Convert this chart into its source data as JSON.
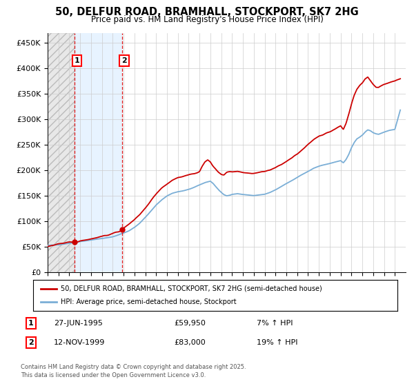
{
  "title": "50, DELFUR ROAD, BRAMHALL, STOCKPORT, SK7 2HG",
  "subtitle": "Price paid vs. HM Land Registry's House Price Index (HPI)",
  "legend_line1": "50, DELFUR ROAD, BRAMHALL, STOCKPORT, SK7 2HG (semi-detached house)",
  "legend_line2": "HPI: Average price, semi-detached house, Stockport",
  "t1_label": "1",
  "t1_date": "27-JUN-1995",
  "t1_price": "£59,950",
  "t1_hpi_txt": "7% ↑ HPI",
  "t1_year": 1995.49,
  "t1_value": 59950,
  "t2_label": "2",
  "t2_date": "12-NOV-1999",
  "t2_price": "£83,000",
  "t2_hpi_txt": "19% ↑ HPI",
  "t2_year": 1999.87,
  "t2_value": 83000,
  "copyright": "Contains HM Land Registry data © Crown copyright and database right 2025.\nThis data is licensed under the Open Government Licence v3.0.",
  "red_color": "#cc0000",
  "blue_color": "#7aaed6",
  "grid_color": "#cccccc",
  "ylim": [
    0,
    470000
  ],
  "ytick_vals": [
    0,
    50000,
    100000,
    150000,
    200000,
    250000,
    300000,
    350000,
    400000,
    450000
  ],
  "ytick_labels": [
    "£0",
    "£50K",
    "£100K",
    "£150K",
    "£200K",
    "£250K",
    "£300K",
    "£350K",
    "£400K",
    "£450K"
  ],
  "xmin": 1993,
  "xmax": 2026,
  "hpi_knots": [
    [
      1993.0,
      47000
    ],
    [
      1993.5,
      48000
    ],
    [
      1994.0,
      49500
    ],
    [
      1994.5,
      51000
    ],
    [
      1995.0,
      52500
    ],
    [
      1995.5,
      54000
    ],
    [
      1996.0,
      56000
    ],
    [
      1996.5,
      57500
    ],
    [
      1997.0,
      59500
    ],
    [
      1997.5,
      61500
    ],
    [
      1998.0,
      63000
    ],
    [
      1998.5,
      65000
    ],
    [
      1999.0,
      67000
    ],
    [
      1999.5,
      70000
    ],
    [
      2000.0,
      74000
    ],
    [
      2000.5,
      79000
    ],
    [
      2001.0,
      86000
    ],
    [
      2001.5,
      95000
    ],
    [
      2002.0,
      106000
    ],
    [
      2002.5,
      118000
    ],
    [
      2003.0,
      130000
    ],
    [
      2003.5,
      140000
    ],
    [
      2004.0,
      148000
    ],
    [
      2004.5,
      153000
    ],
    [
      2005.0,
      156000
    ],
    [
      2005.5,
      158000
    ],
    [
      2006.0,
      161000
    ],
    [
      2006.5,
      165000
    ],
    [
      2007.0,
      170000
    ],
    [
      2007.5,
      175000
    ],
    [
      2008.0,
      178000
    ],
    [
      2008.25,
      174000
    ],
    [
      2008.5,
      168000
    ],
    [
      2008.75,
      162000
    ],
    [
      2009.0,
      157000
    ],
    [
      2009.25,
      153000
    ],
    [
      2009.5,
      151000
    ],
    [
      2009.75,
      152000
    ],
    [
      2010.0,
      154000
    ],
    [
      2010.5,
      156000
    ],
    [
      2011.0,
      155000
    ],
    [
      2011.5,
      154000
    ],
    [
      2012.0,
      153000
    ],
    [
      2012.5,
      154000
    ],
    [
      2013.0,
      156000
    ],
    [
      2013.5,
      159000
    ],
    [
      2014.0,
      164000
    ],
    [
      2014.5,
      170000
    ],
    [
      2015.0,
      176000
    ],
    [
      2015.5,
      182000
    ],
    [
      2016.0,
      188000
    ],
    [
      2016.5,
      194000
    ],
    [
      2017.0,
      200000
    ],
    [
      2017.5,
      206000
    ],
    [
      2018.0,
      210000
    ],
    [
      2018.5,
      213000
    ],
    [
      2019.0,
      216000
    ],
    [
      2019.5,
      219000
    ],
    [
      2020.0,
      222000
    ],
    [
      2020.25,
      218000
    ],
    [
      2020.5,
      225000
    ],
    [
      2020.75,
      235000
    ],
    [
      2021.0,
      248000
    ],
    [
      2021.25,
      258000
    ],
    [
      2021.5,
      265000
    ],
    [
      2021.75,
      268000
    ],
    [
      2022.0,
      272000
    ],
    [
      2022.25,
      278000
    ],
    [
      2022.5,
      282000
    ],
    [
      2022.75,
      280000
    ],
    [
      2023.0,
      276000
    ],
    [
      2023.25,
      274000
    ],
    [
      2023.5,
      273000
    ],
    [
      2023.75,
      275000
    ],
    [
      2024.0,
      277000
    ],
    [
      2024.5,
      280000
    ],
    [
      2025.0,
      282000
    ],
    [
      2025.5,
      320000
    ]
  ],
  "red_knots": [
    [
      1993.0,
      54000
    ],
    [
      1993.5,
      55500
    ],
    [
      1994.0,
      57000
    ],
    [
      1994.5,
      58500
    ],
    [
      1995.0,
      59500
    ],
    [
      1995.49,
      59950
    ],
    [
      1995.75,
      61000
    ],
    [
      1996.0,
      63000
    ],
    [
      1996.5,
      64500
    ],
    [
      1997.0,
      66500
    ],
    [
      1997.5,
      68500
    ],
    [
      1998.0,
      70500
    ],
    [
      1998.5,
      72500
    ],
    [
      1999.0,
      75000
    ],
    [
      1999.5,
      78500
    ],
    [
      1999.87,
      83000
    ],
    [
      2000.0,
      87000
    ],
    [
      2000.5,
      94000
    ],
    [
      2001.0,
      103000
    ],
    [
      2001.5,
      114000
    ],
    [
      2002.0,
      127000
    ],
    [
      2002.5,
      142000
    ],
    [
      2003.0,
      156000
    ],
    [
      2003.5,
      168000
    ],
    [
      2004.0,
      177000
    ],
    [
      2004.5,
      184000
    ],
    [
      2005.0,
      188000
    ],
    [
      2005.5,
      191000
    ],
    [
      2006.0,
      194000
    ],
    [
      2006.5,
      196000
    ],
    [
      2007.0,
      200000
    ],
    [
      2007.25,
      210000
    ],
    [
      2007.5,
      218000
    ],
    [
      2007.75,
      222000
    ],
    [
      2008.0,
      218000
    ],
    [
      2008.25,
      210000
    ],
    [
      2008.5,
      203000
    ],
    [
      2008.75,
      197000
    ],
    [
      2009.0,
      193000
    ],
    [
      2009.25,
      192000
    ],
    [
      2009.5,
      196000
    ],
    [
      2009.75,
      197000
    ],
    [
      2010.0,
      197000
    ],
    [
      2010.5,
      198000
    ],
    [
      2011.0,
      196000
    ],
    [
      2011.5,
      194000
    ],
    [
      2012.0,
      193000
    ],
    [
      2012.5,
      194000
    ],
    [
      2013.0,
      196000
    ],
    [
      2013.5,
      198000
    ],
    [
      2014.0,
      202000
    ],
    [
      2014.5,
      208000
    ],
    [
      2015.0,
      215000
    ],
    [
      2015.5,
      222000
    ],
    [
      2016.0,
      230000
    ],
    [
      2016.5,
      240000
    ],
    [
      2017.0,
      250000
    ],
    [
      2017.5,
      258000
    ],
    [
      2018.0,
      265000
    ],
    [
      2018.5,
      268000
    ],
    [
      2019.0,
      272000
    ],
    [
      2019.5,
      278000
    ],
    [
      2020.0,
      285000
    ],
    [
      2020.25,
      278000
    ],
    [
      2020.5,
      290000
    ],
    [
      2020.75,
      308000
    ],
    [
      2021.0,
      328000
    ],
    [
      2021.25,
      345000
    ],
    [
      2021.5,
      358000
    ],
    [
      2021.75,
      365000
    ],
    [
      2022.0,
      370000
    ],
    [
      2022.25,
      378000
    ],
    [
      2022.5,
      382000
    ],
    [
      2022.75,
      375000
    ],
    [
      2023.0,
      368000
    ],
    [
      2023.25,
      363000
    ],
    [
      2023.5,
      362000
    ],
    [
      2023.75,
      365000
    ],
    [
      2024.0,
      368000
    ],
    [
      2024.5,
      372000
    ],
    [
      2025.0,
      375000
    ],
    [
      2025.5,
      380000
    ]
  ]
}
